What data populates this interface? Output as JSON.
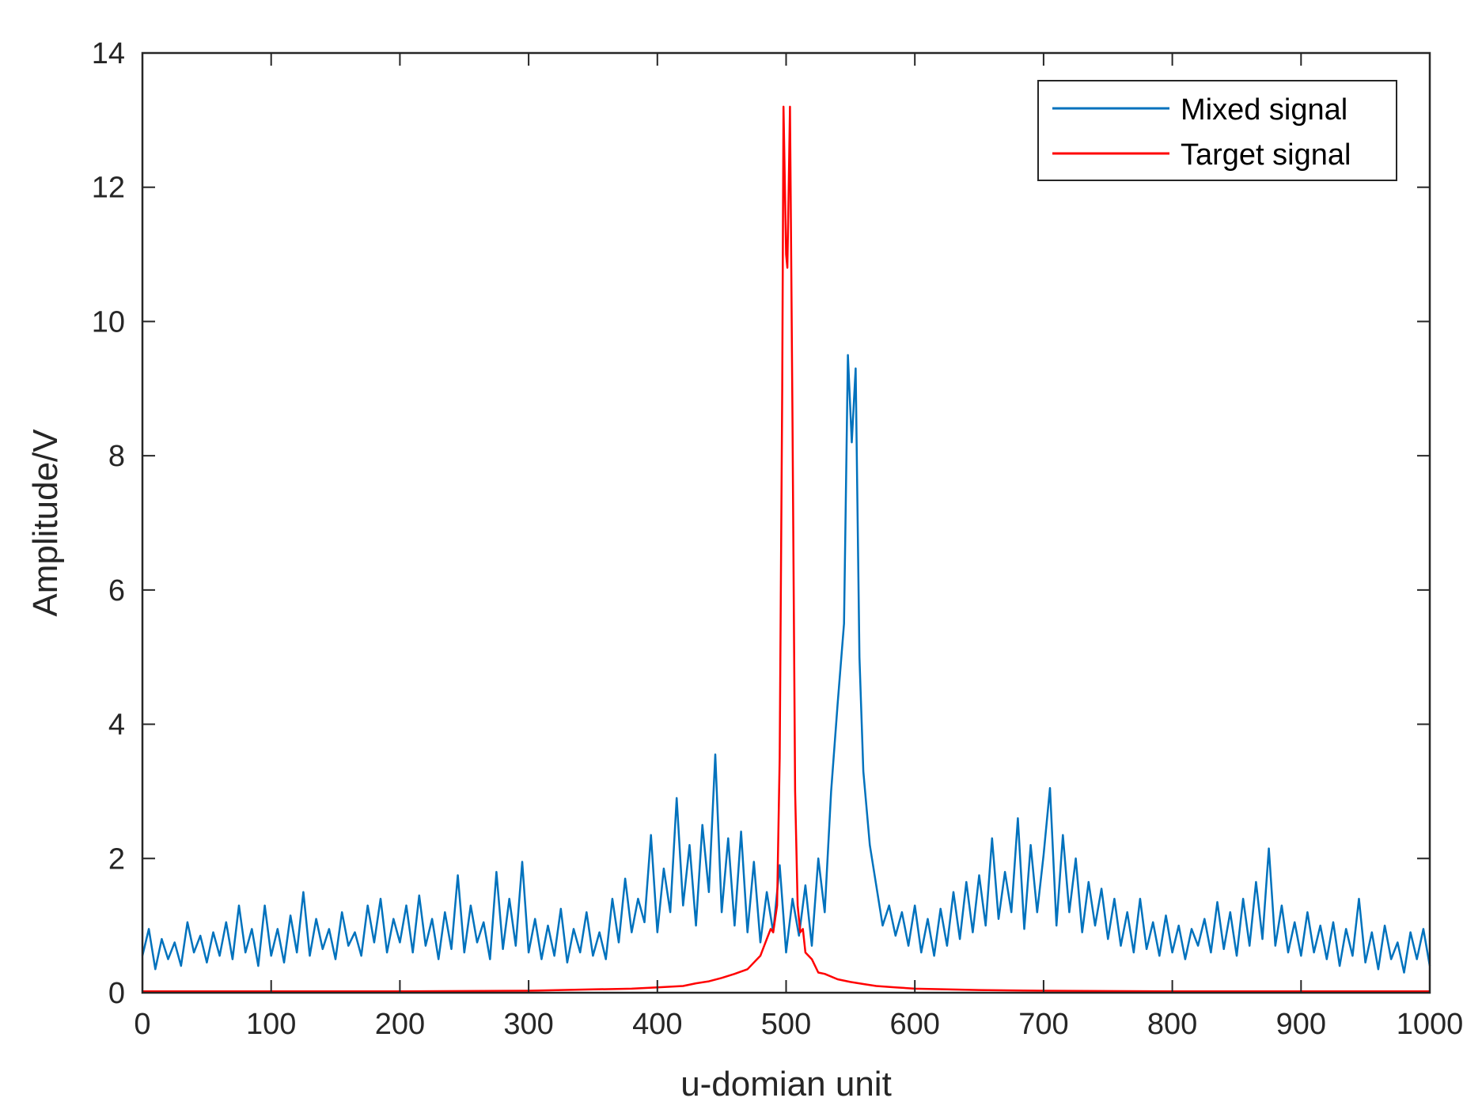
{
  "chart_data": {
    "type": "line",
    "title": "",
    "xlabel": "u-domian unit",
    "ylabel": "Amplitude/V",
    "xlim": [
      0,
      1000
    ],
    "ylim": [
      0,
      14
    ],
    "xticks": [
      0,
      100,
      200,
      300,
      400,
      500,
      600,
      700,
      800,
      900,
      1000
    ],
    "yticks": [
      0,
      2,
      4,
      6,
      8,
      10,
      12,
      14
    ],
    "grid": false,
    "legend_position": "top-right",
    "series": [
      {
        "name": "Mixed signal",
        "color": "#0072BD",
        "points": [
          [
            0,
            0.55
          ],
          [
            5,
            0.95
          ],
          [
            10,
            0.35
          ],
          [
            15,
            0.8
          ],
          [
            20,
            0.5
          ],
          [
            25,
            0.75
          ],
          [
            30,
            0.4
          ],
          [
            35,
            1.05
          ],
          [
            40,
            0.6
          ],
          [
            45,
            0.85
          ],
          [
            50,
            0.45
          ],
          [
            55,
            0.9
          ],
          [
            60,
            0.55
          ],
          [
            65,
            1.05
          ],
          [
            70,
            0.5
          ],
          [
            75,
            1.3
          ],
          [
            80,
            0.6
          ],
          [
            85,
            0.95
          ],
          [
            90,
            0.4
          ],
          [
            95,
            1.3
          ],
          [
            100,
            0.55
          ],
          [
            105,
            0.95
          ],
          [
            110,
            0.45
          ],
          [
            115,
            1.15
          ],
          [
            120,
            0.6
          ],
          [
            125,
            1.5
          ],
          [
            130,
            0.55
          ],
          [
            135,
            1.1
          ],
          [
            140,
            0.65
          ],
          [
            145,
            0.95
          ],
          [
            150,
            0.5
          ],
          [
            155,
            1.2
          ],
          [
            160,
            0.7
          ],
          [
            165,
            0.9
          ],
          [
            170,
            0.55
          ],
          [
            175,
            1.3
          ],
          [
            180,
            0.75
          ],
          [
            185,
            1.4
          ],
          [
            190,
            0.6
          ],
          [
            195,
            1.1
          ],
          [
            200,
            0.75
          ],
          [
            205,
            1.3
          ],
          [
            210,
            0.6
          ],
          [
            215,
            1.45
          ],
          [
            220,
            0.7
          ],
          [
            225,
            1.1
          ],
          [
            230,
            0.5
          ],
          [
            235,
            1.2
          ],
          [
            240,
            0.65
          ],
          [
            245,
            1.75
          ],
          [
            250,
            0.6
          ],
          [
            255,
            1.3
          ],
          [
            260,
            0.75
          ],
          [
            265,
            1.05
          ],
          [
            270,
            0.5
          ],
          [
            275,
            1.8
          ],
          [
            280,
            0.65
          ],
          [
            285,
            1.4
          ],
          [
            290,
            0.7
          ],
          [
            295,
            1.95
          ],
          [
            300,
            0.6
          ],
          [
            305,
            1.1
          ],
          [
            310,
            0.5
          ],
          [
            315,
            1.0
          ],
          [
            320,
            0.55
          ],
          [
            325,
            1.25
          ],
          [
            330,
            0.45
          ],
          [
            335,
            0.95
          ],
          [
            340,
            0.6
          ],
          [
            345,
            1.2
          ],
          [
            350,
            0.55
          ],
          [
            355,
            0.9
          ],
          [
            360,
            0.5
          ],
          [
            365,
            1.4
          ],
          [
            370,
            0.75
          ],
          [
            375,
            1.7
          ],
          [
            380,
            0.9
          ],
          [
            385,
            1.4
          ],
          [
            390,
            1.05
          ],
          [
            395,
            2.35
          ],
          [
            400,
            0.9
          ],
          [
            405,
            1.85
          ],
          [
            410,
            1.2
          ],
          [
            415,
            2.9
          ],
          [
            420,
            1.3
          ],
          [
            425,
            2.2
          ],
          [
            430,
            1.0
          ],
          [
            435,
            2.5
          ],
          [
            440,
            1.5
          ],
          [
            445,
            3.55
          ],
          [
            450,
            1.2
          ],
          [
            455,
            2.3
          ],
          [
            460,
            1.0
          ],
          [
            465,
            2.4
          ],
          [
            470,
            0.9
          ],
          [
            475,
            1.95
          ],
          [
            480,
            0.75
          ],
          [
            485,
            1.5
          ],
          [
            490,
            0.9
          ],
          [
            495,
            1.9
          ],
          [
            500,
            0.6
          ],
          [
            505,
            1.4
          ],
          [
            510,
            0.85
          ],
          [
            515,
            1.6
          ],
          [
            520,
            0.7
          ],
          [
            525,
            2.0
          ],
          [
            530,
            1.2
          ],
          [
            535,
            3.0
          ],
          [
            540,
            4.3
          ],
          [
            545,
            5.5
          ],
          [
            548,
            9.5
          ],
          [
            551,
            8.2
          ],
          [
            554,
            9.3
          ],
          [
            557,
            5.0
          ],
          [
            560,
            3.3
          ],
          [
            565,
            2.2
          ],
          [
            570,
            1.6
          ],
          [
            575,
            1.0
          ],
          [
            580,
            1.3
          ],
          [
            585,
            0.85
          ],
          [
            590,
            1.2
          ],
          [
            595,
            0.7
          ],
          [
            600,
            1.3
          ],
          [
            605,
            0.6
          ],
          [
            610,
            1.1
          ],
          [
            615,
            0.55
          ],
          [
            620,
            1.25
          ],
          [
            625,
            0.7
          ],
          [
            630,
            1.5
          ],
          [
            635,
            0.8
          ],
          [
            640,
            1.65
          ],
          [
            645,
            0.9
          ],
          [
            650,
            1.75
          ],
          [
            655,
            1.0
          ],
          [
            660,
            2.3
          ],
          [
            665,
            1.1
          ],
          [
            670,
            1.8
          ],
          [
            675,
            1.2
          ],
          [
            680,
            2.6
          ],
          [
            685,
            0.95
          ],
          [
            690,
            2.2
          ],
          [
            695,
            1.2
          ],
          [
            700,
            2.05
          ],
          [
            705,
            3.05
          ],
          [
            710,
            1.0
          ],
          [
            715,
            2.35
          ],
          [
            720,
            1.2
          ],
          [
            725,
            2.0
          ],
          [
            730,
            0.9
          ],
          [
            735,
            1.65
          ],
          [
            740,
            1.0
          ],
          [
            745,
            1.55
          ],
          [
            750,
            0.8
          ],
          [
            755,
            1.4
          ],
          [
            760,
            0.7
          ],
          [
            765,
            1.2
          ],
          [
            770,
            0.6
          ],
          [
            775,
            1.4
          ],
          [
            780,
            0.65
          ],
          [
            785,
            1.05
          ],
          [
            790,
            0.55
          ],
          [
            795,
            1.15
          ],
          [
            800,
            0.6
          ],
          [
            805,
            1.0
          ],
          [
            810,
            0.5
          ],
          [
            815,
            0.95
          ],
          [
            820,
            0.7
          ],
          [
            825,
            1.1
          ],
          [
            830,
            0.6
          ],
          [
            835,
            1.35
          ],
          [
            840,
            0.65
          ],
          [
            845,
            1.2
          ],
          [
            850,
            0.55
          ],
          [
            855,
            1.4
          ],
          [
            860,
            0.7
          ],
          [
            865,
            1.65
          ],
          [
            870,
            0.8
          ],
          [
            875,
            2.15
          ],
          [
            880,
            0.7
          ],
          [
            885,
            1.3
          ],
          [
            890,
            0.6
          ],
          [
            895,
            1.05
          ],
          [
            900,
            0.55
          ],
          [
            905,
            1.2
          ],
          [
            910,
            0.6
          ],
          [
            915,
            1.0
          ],
          [
            920,
            0.5
          ],
          [
            925,
            1.05
          ],
          [
            930,
            0.4
          ],
          [
            935,
            0.95
          ],
          [
            940,
            0.55
          ],
          [
            945,
            1.4
          ],
          [
            950,
            0.45
          ],
          [
            955,
            0.9
          ],
          [
            960,
            0.35
          ],
          [
            965,
            1.0
          ],
          [
            970,
            0.5
          ],
          [
            975,
            0.75
          ],
          [
            980,
            0.3
          ],
          [
            985,
            0.9
          ],
          [
            990,
            0.5
          ],
          [
            995,
            0.95
          ],
          [
            1000,
            0.4
          ]
        ]
      },
      {
        "name": "Target signal",
        "color": "#FF0000",
        "points": [
          [
            0,
            0.02
          ],
          [
            100,
            0.02
          ],
          [
            200,
            0.02
          ],
          [
            300,
            0.03
          ],
          [
            350,
            0.05
          ],
          [
            380,
            0.06
          ],
          [
            400,
            0.08
          ],
          [
            420,
            0.1
          ],
          [
            430,
            0.14
          ],
          [
            440,
            0.17
          ],
          [
            450,
            0.22
          ],
          [
            460,
            0.28
          ],
          [
            470,
            0.35
          ],
          [
            475,
            0.45
          ],
          [
            480,
            0.55
          ],
          [
            485,
            0.8
          ],
          [
            488,
            0.95
          ],
          [
            490,
            0.9
          ],
          [
            493,
            1.3
          ],
          [
            495,
            3.5
          ],
          [
            497,
            9.0
          ],
          [
            498,
            13.2
          ],
          [
            500,
            11.0
          ],
          [
            501,
            10.8
          ],
          [
            502,
            12.0
          ],
          [
            503,
            13.2
          ],
          [
            505,
            8.5
          ],
          [
            507,
            3.0
          ],
          [
            509,
            1.3
          ],
          [
            511,
            0.9
          ],
          [
            513,
            0.95
          ],
          [
            515,
            0.6
          ],
          [
            520,
            0.5
          ],
          [
            525,
            0.3
          ],
          [
            530,
            0.28
          ],
          [
            540,
            0.2
          ],
          [
            550,
            0.16
          ],
          [
            560,
            0.13
          ],
          [
            570,
            0.1
          ],
          [
            585,
            0.08
          ],
          [
            600,
            0.06
          ],
          [
            650,
            0.04
          ],
          [
            700,
            0.03
          ],
          [
            800,
            0.02
          ],
          [
            900,
            0.02
          ],
          [
            1000,
            0.02
          ]
        ]
      }
    ]
  }
}
